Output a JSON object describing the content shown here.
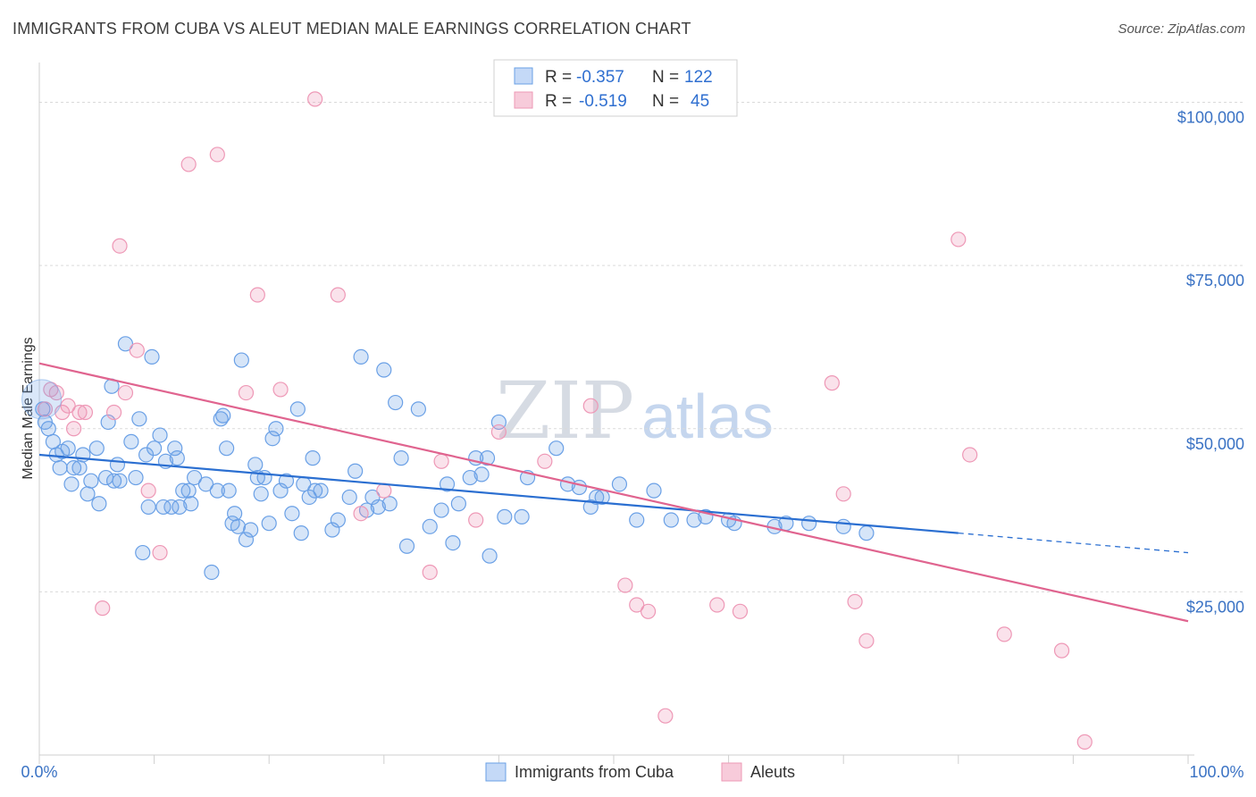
{
  "header": {
    "title": "IMMIGRANTS FROM CUBA VS ALEUT MEDIAN MALE EARNINGS CORRELATION CHART",
    "source": "Source: ZipAtlas.com"
  },
  "legend": {
    "series1": {
      "r_label": "R =",
      "r_value": "-0.357",
      "n_label": "N =",
      "n_value": "122"
    },
    "series2": {
      "r_label": "R =",
      "r_value": "-0.519",
      "n_label": "N =",
      "n_value": "45"
    }
  },
  "watermark": {
    "part1": "ZIP",
    "part2": "atlas"
  },
  "colors": {
    "blue": "#6aa0e6",
    "blue_line": "#2b6fd1",
    "pink": "#ee98b6",
    "pink_line": "#e0648f",
    "accent_text": "#3a72c4"
  },
  "chart_data": {
    "type": "scatter",
    "title": "IMMIGRANTS FROM CUBA VS ALEUT MEDIAN MALE EARNINGS CORRELATION CHART",
    "xlabel": "",
    "ylabel": "Median Male Earnings",
    "xlim": [
      0,
      100
    ],
    "ylim": [
      0,
      105000
    ],
    "x_tick_labels": [
      "0.0%",
      "100.0%"
    ],
    "y_ticks": [
      {
        "value": 25000,
        "label": "$25,000"
      },
      {
        "value": 50000,
        "label": "$50,000"
      },
      {
        "value": 75000,
        "label": "$75,000"
      },
      {
        "value": 100000,
        "label": "$100,000"
      }
    ],
    "series": [
      {
        "name": "Immigrants from Cuba",
        "color": "#6aa0e6",
        "trend": {
          "x_start": 0,
          "y_start": 46000,
          "x_end": 80,
          "y_end": 34000,
          "dash_to_x": 100,
          "dash_to_y": 31000
        },
        "points": [
          [
            0.3,
            53000
          ],
          [
            0.5,
            51000
          ],
          [
            0.8,
            50000
          ],
          [
            1.2,
            48000
          ],
          [
            1.5,
            46000
          ],
          [
            1.8,
            44000
          ],
          [
            2,
            46500
          ],
          [
            2.5,
            47000
          ],
          [
            2.8,
            41500
          ],
          [
            3,
            44000
          ],
          [
            3.5,
            44000
          ],
          [
            3.8,
            46000
          ],
          [
            4.2,
            40000
          ],
          [
            4.5,
            42000
          ],
          [
            5,
            47000
          ],
          [
            5.2,
            38500
          ],
          [
            5.8,
            42500
          ],
          [
            6,
            51000
          ],
          [
            6.3,
            56500
          ],
          [
            6.5,
            42000
          ],
          [
            6.8,
            44500
          ],
          [
            7,
            42000
          ],
          [
            7.5,
            63000
          ],
          [
            8,
            48000
          ],
          [
            8.4,
            42500
          ],
          [
            8.7,
            51500
          ],
          [
            9,
            31000
          ],
          [
            9.3,
            46000
          ],
          [
            9.5,
            38000
          ],
          [
            9.8,
            61000
          ],
          [
            10,
            47000
          ],
          [
            10.5,
            49000
          ],
          [
            10.8,
            38000
          ],
          [
            11,
            45000
          ],
          [
            11.5,
            38000
          ],
          [
            11.8,
            47000
          ],
          [
            12,
            45500
          ],
          [
            12.2,
            38000
          ],
          [
            12.5,
            40500
          ],
          [
            13,
            40500
          ],
          [
            13.2,
            38500
          ],
          [
            13.5,
            42500
          ],
          [
            14.5,
            41500
          ],
          [
            15,
            28000
          ],
          [
            15.5,
            40500
          ],
          [
            15.8,
            51500
          ],
          [
            16,
            52000
          ],
          [
            16.3,
            47000
          ],
          [
            16.5,
            40500
          ],
          [
            16.8,
            35500
          ],
          [
            17,
            37000
          ],
          [
            17.3,
            35000
          ],
          [
            17.6,
            60500
          ],
          [
            18,
            33000
          ],
          [
            18.4,
            34500
          ],
          [
            18.8,
            44500
          ],
          [
            19,
            42500
          ],
          [
            19.3,
            40000
          ],
          [
            19.6,
            42500
          ],
          [
            20,
            35500
          ],
          [
            20.3,
            48500
          ],
          [
            20.6,
            50000
          ],
          [
            21,
            40500
          ],
          [
            21.5,
            42000
          ],
          [
            22,
            37000
          ],
          [
            22.5,
            53000
          ],
          [
            22.8,
            34000
          ],
          [
            23,
            41500
          ],
          [
            23.5,
            39500
          ],
          [
            23.8,
            45500
          ],
          [
            24,
            40500
          ],
          [
            24.5,
            40500
          ],
          [
            25.5,
            34500
          ],
          [
            26,
            36000
          ],
          [
            27,
            39500
          ],
          [
            27.5,
            43500
          ],
          [
            28,
            61000
          ],
          [
            28.5,
            37500
          ],
          [
            29,
            39500
          ],
          [
            29.5,
            38000
          ],
          [
            30,
            59000
          ],
          [
            30.5,
            38500
          ],
          [
            31,
            54000
          ],
          [
            31.5,
            45500
          ],
          [
            32,
            32000
          ],
          [
            33,
            53000
          ],
          [
            34,
            35000
          ],
          [
            35,
            37500
          ],
          [
            35.5,
            41500
          ],
          [
            36,
            32500
          ],
          [
            36.5,
            38500
          ],
          [
            37.5,
            42500
          ],
          [
            38,
            45500
          ],
          [
            38.5,
            43000
          ],
          [
            39,
            45500
          ],
          [
            39.2,
            30500
          ],
          [
            40,
            51000
          ],
          [
            40.5,
            36500
          ],
          [
            42,
            36500
          ],
          [
            42.5,
            42500
          ],
          [
            45,
            47000
          ],
          [
            46,
            41500
          ],
          [
            47,
            41000
          ],
          [
            48,
            38000
          ],
          [
            48.5,
            39500
          ],
          [
            49,
            39500
          ],
          [
            50.5,
            41500
          ],
          [
            52,
            36000
          ],
          [
            53.5,
            40500
          ],
          [
            55,
            36000
          ],
          [
            57,
            36000
          ],
          [
            58,
            36500
          ],
          [
            60,
            36000
          ],
          [
            60.5,
            35500
          ],
          [
            64,
            35000
          ],
          [
            65,
            35500
          ],
          [
            67,
            35500
          ],
          [
            70,
            35000
          ],
          [
            72,
            34000
          ]
        ]
      },
      {
        "name": "Aleuts",
        "color": "#ee98b6",
        "trend": {
          "x_start": 0,
          "y_start": 60000,
          "x_end": 100,
          "y_end": 20500
        },
        "points": [
          [
            0.5,
            53000
          ],
          [
            1,
            56000
          ],
          [
            1.5,
            55500
          ],
          [
            2,
            52500
          ],
          [
            2.5,
            53500
          ],
          [
            3,
            50000
          ],
          [
            3.5,
            52500
          ],
          [
            4,
            52500
          ],
          [
            5.5,
            22500
          ],
          [
            6.5,
            52500
          ],
          [
            7,
            78000
          ],
          [
            7.5,
            55500
          ],
          [
            8.5,
            62000
          ],
          [
            9.5,
            40500
          ],
          [
            10.5,
            31000
          ],
          [
            13,
            90500
          ],
          [
            15.5,
            92000
          ],
          [
            18,
            55500
          ],
          [
            19,
            70500
          ],
          [
            21,
            56000
          ],
          [
            24,
            100500
          ],
          [
            26,
            70500
          ],
          [
            28,
            37000
          ],
          [
            30,
            40500
          ],
          [
            34,
            28000
          ],
          [
            35,
            45000
          ],
          [
            38,
            36000
          ],
          [
            40,
            49500
          ],
          [
            44,
            45000
          ],
          [
            48,
            53500
          ],
          [
            51,
            26000
          ],
          [
            52,
            23000
          ],
          [
            53,
            22000
          ],
          [
            54.5,
            6000
          ],
          [
            59,
            23000
          ],
          [
            61,
            22000
          ],
          [
            69,
            57000
          ],
          [
            70,
            40000
          ],
          [
            71,
            23500
          ],
          [
            72,
            17500
          ],
          [
            80,
            79000
          ],
          [
            81,
            46000
          ],
          [
            84,
            18500
          ],
          [
            89,
            16000
          ],
          [
            91,
            2000
          ]
        ]
      }
    ]
  },
  "bottom_legend": {
    "series1_label": "Immigrants from Cuba",
    "series2_label": "Aleuts"
  }
}
